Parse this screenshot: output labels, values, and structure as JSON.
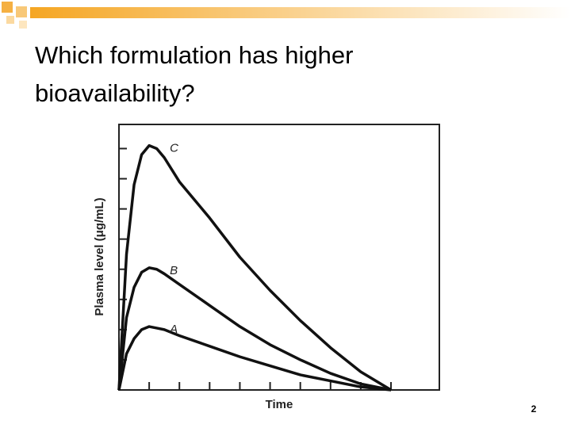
{
  "title": "Which formulation has higher bioavailability?",
  "page_number": "2",
  "chart_data": {
    "type": "line",
    "x_label": "Time",
    "y_label": "Plasma level (μg/mL)",
    "x": [
      0,
      0.25,
      0.5,
      0.75,
      1,
      1.25,
      1.5,
      2,
      3,
      4,
      5,
      6,
      7,
      8,
      9
    ],
    "xlim": [
      0,
      10.6
    ],
    "ylim": [
      0,
      8.8
    ],
    "xticks": [
      1,
      2,
      3,
      4,
      5,
      6,
      7,
      8,
      9
    ],
    "yticks": [
      1,
      2,
      3,
      4,
      5,
      6,
      7,
      8
    ],
    "series": [
      {
        "name": "C",
        "color": "#111111",
        "values": [
          0,
          4.5,
          6.8,
          7.8,
          8.1,
          8.0,
          7.7,
          6.9,
          5.7,
          4.4,
          3.3,
          2.3,
          1.4,
          0.6,
          0
        ]
      },
      {
        "name": "B",
        "color": "#111111",
        "values": [
          0,
          2.4,
          3.4,
          3.9,
          4.05,
          4.0,
          3.85,
          3.5,
          2.8,
          2.1,
          1.5,
          1.0,
          0.55,
          0.2,
          0
        ]
      },
      {
        "name": "A",
        "color": "#111111",
        "values": [
          0,
          1.2,
          1.7,
          2.0,
          2.1,
          2.05,
          2.0,
          1.8,
          1.45,
          1.1,
          0.8,
          0.5,
          0.3,
          0.1,
          0
        ]
      }
    ]
  }
}
